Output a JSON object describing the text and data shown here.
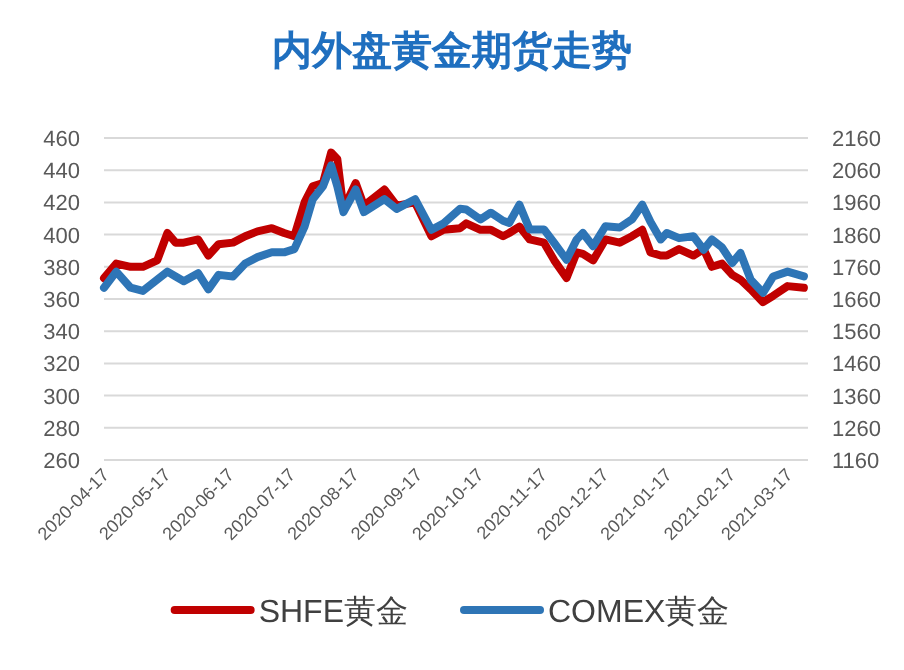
{
  "chart_data": {
    "type": "line",
    "title": "内外盘黄金期货走势",
    "x": [
      "2020-04-14",
      "2020-04-20",
      "2020-04-27",
      "2020-05-03",
      "2020-05-10",
      "2020-05-15",
      "2020-05-19",
      "2020-05-23",
      "2020-05-30",
      "2020-06-04",
      "2020-06-09",
      "2020-06-16",
      "2020-06-22",
      "2020-06-28",
      "2020-07-05",
      "2020-07-11",
      "2020-07-16",
      "2020-07-21",
      "2020-07-25",
      "2020-07-30",
      "2020-08-03",
      "2020-08-06",
      "2020-08-09",
      "2020-08-15",
      "2020-08-19",
      "2020-08-29",
      "2020-09-04",
      "2020-09-13",
      "2020-09-21",
      "2020-09-27",
      "2020-10-05",
      "2020-10-08",
      "2020-10-15",
      "2020-10-20",
      "2020-10-26",
      "2020-10-29",
      "2020-11-03",
      "2020-11-08",
      "2020-11-15",
      "2020-11-20",
      "2020-11-26",
      "2020-12-01",
      "2020-12-04",
      "2020-12-09",
      "2020-12-15",
      "2020-12-22",
      "2020-12-28",
      "2021-01-02",
      "2021-01-06",
      "2021-01-11",
      "2021-01-14",
      "2021-01-20",
      "2021-01-27",
      "2021-02-01",
      "2021-02-05",
      "2021-02-10",
      "2021-02-15",
      "2021-02-19",
      "2021-02-24",
      "2021-03-02",
      "2021-03-07",
      "2021-03-14",
      "2021-03-22"
    ],
    "series": [
      {
        "name": "SHFE黄金",
        "color": "#c00000",
        "values": [
          373,
          382,
          380,
          380,
          384,
          401,
          395,
          395,
          397,
          387,
          394,
          395,
          399,
          402,
          404,
          401,
          399,
          420,
          430,
          432,
          451,
          447,
          416,
          432,
          418,
          428,
          418,
          420,
          399,
          403,
          404,
          407,
          403,
          403,
          399,
          401,
          405,
          397,
          395,
          384,
          373,
          389,
          388,
          384,
          397,
          395,
          399,
          403,
          389,
          387,
          387,
          391,
          387,
          391,
          380,
          382,
          375,
          372,
          366,
          358,
          362,
          368,
          367
        ]
      },
      {
        "name": "COMEX黄金",
        "color": "#2e75b6",
        "axis": "y2",
        "values": [
          1695,
          1745,
          1695,
          1685,
          1720,
          1745,
          1730,
          1715,
          1740,
          1690,
          1735,
          1730,
          1770,
          1790,
          1805,
          1805,
          1815,
          1885,
          1970,
          2010,
          2075,
          2010,
          1930,
          2000,
          1930,
          1970,
          1940,
          1970,
          1875,
          1895,
          1940,
          1938,
          1907,
          1928,
          1903,
          1896,
          1953,
          1876,
          1876,
          1834,
          1782,
          1845,
          1865,
          1824,
          1886,
          1882,
          1907,
          1953,
          1900,
          1845,
          1865,
          1849,
          1855,
          1813,
          1845,
          1820,
          1772,
          1803,
          1720,
          1679,
          1730,
          1745,
          1730
        ]
      }
    ],
    "xlim": [
      "2020-04-14",
      "2021-03-24"
    ],
    "xticks": [
      "2020-04-17",
      "2020-05-17",
      "2020-06-17",
      "2020-07-17",
      "2020-08-17",
      "2020-09-17",
      "2020-10-17",
      "2020-11-17",
      "2020-12-17",
      "2021-01-17",
      "2021-02-17",
      "2021-03-17"
    ],
    "ylim": [
      260,
      460
    ],
    "yticks": [
      260,
      280,
      300,
      320,
      340,
      360,
      380,
      400,
      420,
      440,
      460
    ],
    "y2lim": [
      1160,
      2160
    ],
    "y2ticks": [
      1160,
      1260,
      1360,
      1460,
      1560,
      1660,
      1760,
      1860,
      1960,
      2060,
      2160
    ],
    "grid": "y",
    "legend": "bottom",
    "line_style": "solid",
    "marker": "none"
  }
}
